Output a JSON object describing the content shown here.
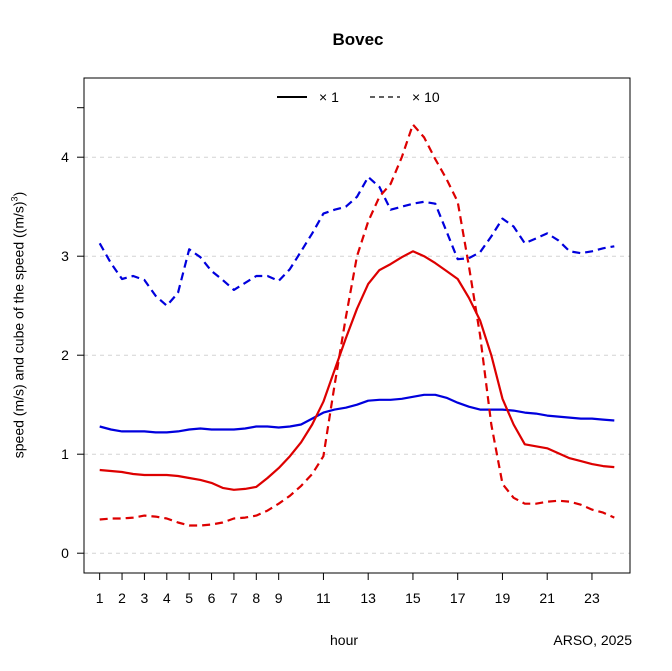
{
  "chart_data": {
    "type": "line",
    "title": "Bovec",
    "xlabel": "hour",
    "ylabel": {
      "prefix": "speed (m/s) and cube of the speed ((m/s)",
      "sup": "3",
      "suffix": ")"
    },
    "credit": "ARSO, 2025",
    "xlim": [
      0.3,
      24.7
    ],
    "ylim": [
      -0.2,
      4.8
    ],
    "xticks": [
      1,
      2,
      3,
      4,
      5,
      6,
      7,
      8,
      9,
      11,
      13,
      15,
      17,
      19,
      21,
      23
    ],
    "yticks": [
      0,
      1,
      2,
      3,
      4
    ],
    "grid": "horizontal dashed",
    "legend": {
      "placement": "top-center",
      "entries": [
        {
          "label": "× 1",
          "style": "solid"
        },
        {
          "label": "×  10",
          "style": "dashed"
        }
      ]
    },
    "x": [
      1,
      1.5,
      2,
      2.5,
      3,
      3.5,
      4,
      4.5,
      5,
      5.5,
      6,
      6.5,
      7,
      7.5,
      8,
      8.5,
      9,
      9.5,
      10,
      10.5,
      11,
      11.5,
      12,
      12.5,
      13,
      13.5,
      14,
      14.5,
      15,
      15.5,
      16,
      16.5,
      17,
      17.5,
      18,
      18.5,
      19,
      19.5,
      20,
      20.5,
      21,
      21.5,
      22,
      22.5,
      23,
      23.5,
      24
    ],
    "series": [
      {
        "color": "#0000dd",
        "style": "solid",
        "values": [
          1.28,
          1.25,
          1.23,
          1.23,
          1.23,
          1.22,
          1.22,
          1.23,
          1.25,
          1.26,
          1.25,
          1.25,
          1.25,
          1.26,
          1.28,
          1.28,
          1.27,
          1.28,
          1.3,
          1.36,
          1.42,
          1.45,
          1.47,
          1.5,
          1.54,
          1.55,
          1.55,
          1.56,
          1.58,
          1.6,
          1.6,
          1.57,
          1.52,
          1.48,
          1.45,
          1.45,
          1.45,
          1.44,
          1.42,
          1.41,
          1.39,
          1.38,
          1.37,
          1.36,
          1.36,
          1.35,
          1.34
        ]
      },
      {
        "color": "#dd0000",
        "style": "solid",
        "values": [
          0.84,
          0.83,
          0.82,
          0.8,
          0.79,
          0.79,
          0.79,
          0.78,
          0.76,
          0.74,
          0.71,
          0.66,
          0.64,
          0.65,
          0.67,
          0.76,
          0.86,
          0.98,
          1.12,
          1.3,
          1.53,
          1.85,
          2.17,
          2.47,
          2.72,
          2.86,
          2.92,
          2.99,
          3.05,
          3.0,
          2.93,
          2.85,
          2.77,
          2.58,
          2.35,
          2.0,
          1.56,
          1.3,
          1.1,
          1.08,
          1.06,
          1.01,
          0.96,
          0.93,
          0.9,
          0.88,
          0.87
        ]
      },
      {
        "color": "#0000dd",
        "style": "dashed",
        "values": [
          3.13,
          2.93,
          2.77,
          2.8,
          2.76,
          2.6,
          2.5,
          2.63,
          3.07,
          2.99,
          2.85,
          2.76,
          2.66,
          2.73,
          2.8,
          2.8,
          2.75,
          2.87,
          3.05,
          3.23,
          3.43,
          3.47,
          3.5,
          3.6,
          3.8,
          3.7,
          3.47,
          3.5,
          3.53,
          3.55,
          3.53,
          3.25,
          2.97,
          2.98,
          3.04,
          3.2,
          3.38,
          3.3,
          3.13,
          3.18,
          3.23,
          3.16,
          3.05,
          3.03,
          3.05,
          3.08,
          3.1
        ]
      },
      {
        "color": "#dd0000",
        "style": "dashed",
        "values": [
          0.34,
          0.35,
          0.35,
          0.36,
          0.38,
          0.37,
          0.35,
          0.31,
          0.28,
          0.28,
          0.29,
          0.31,
          0.35,
          0.36,
          0.38,
          0.43,
          0.5,
          0.58,
          0.68,
          0.8,
          0.98,
          1.7,
          2.38,
          3.0,
          3.35,
          3.6,
          3.73,
          4.0,
          4.33,
          4.2,
          3.98,
          3.78,
          3.55,
          2.9,
          2.2,
          1.3,
          0.7,
          0.56,
          0.5,
          0.5,
          0.52,
          0.53,
          0.52,
          0.49,
          0.44,
          0.41,
          0.36
        ]
      }
    ]
  }
}
